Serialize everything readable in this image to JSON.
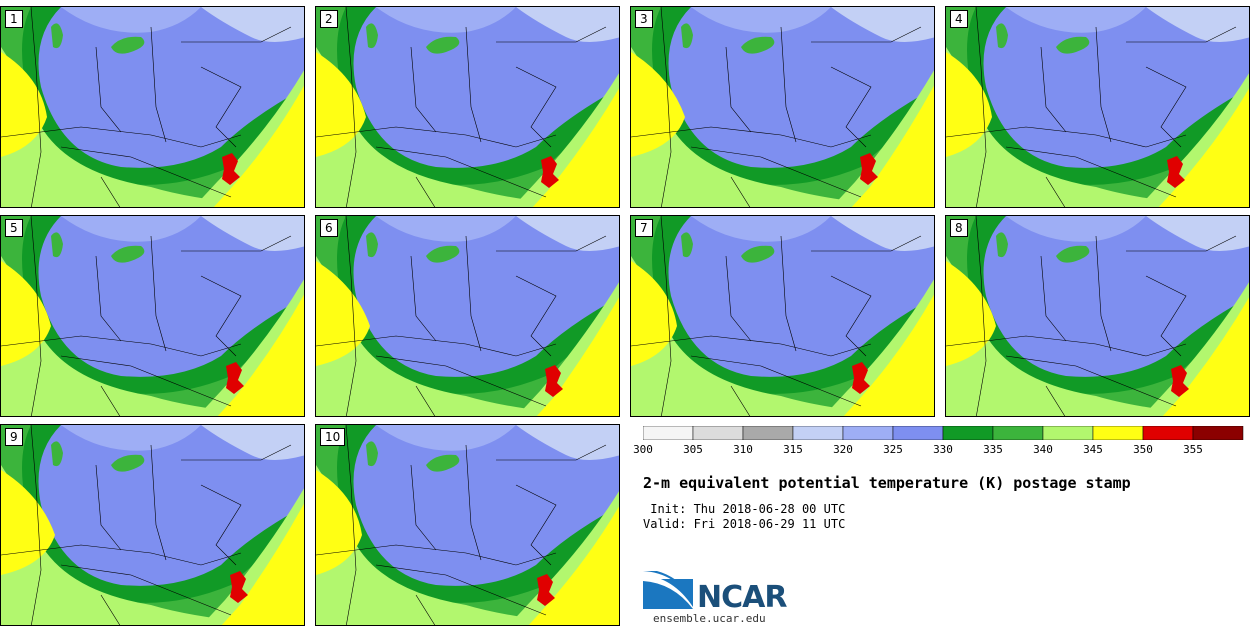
{
  "members": [
    "1",
    "2",
    "3",
    "4",
    "5",
    "6",
    "7",
    "8",
    "9",
    "10"
  ],
  "colorbar": {
    "ticks": [
      "300",
      "305",
      "310",
      "315",
      "320",
      "325",
      "330",
      "335",
      "340",
      "345",
      "350",
      "355"
    ],
    "colors": [
      "#f5f5f5",
      "#dcdcdc",
      "#a9a9a9",
      "#c3d0f5",
      "#9eaef5",
      "#7e8ff0",
      "#119a26",
      "#3cb43c",
      "#b2f76e",
      "#ffff14",
      "#e00000",
      "#8b0000"
    ],
    "range": [
      300,
      360
    ]
  },
  "field_colors": {
    "land_warm": "#ffff14",
    "light_green": "#b2f76e",
    "mid_green": "#3cb43c",
    "dark_green": "#119a26",
    "blue": "#7e8ff0",
    "light_blue": "#9eaef5",
    "pale_blue": "#c3d0f5",
    "hot": "#e00000"
  },
  "title": "2-m equivalent potential temperature (K) postage stamp",
  "init_line": " Init: Thu 2018-06-28 00 UTC",
  "valid_line": "Valid: Fri 2018-06-29 11 UTC",
  "logo": {
    "name": "NCAR",
    "url": "ensemble.ucar.edu"
  }
}
